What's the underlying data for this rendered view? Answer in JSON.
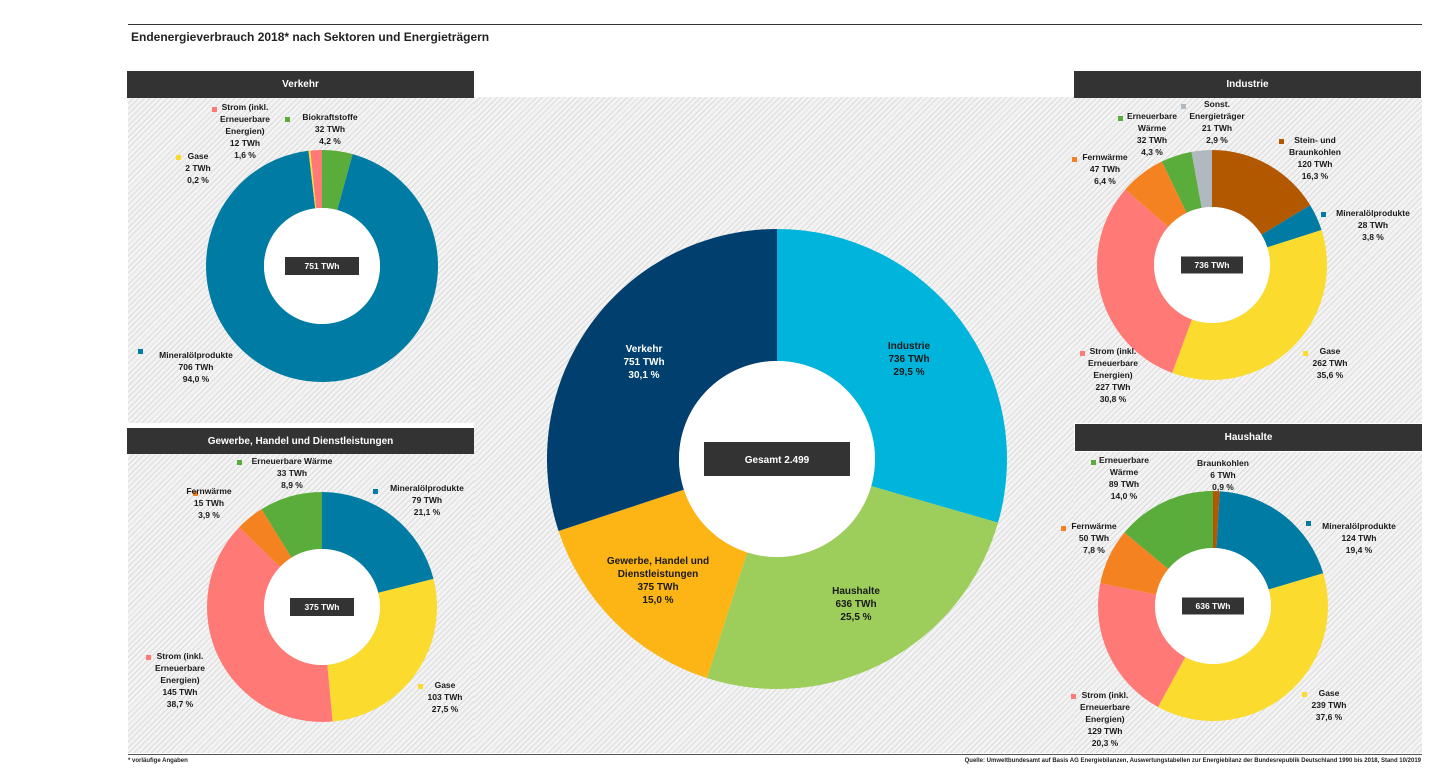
{
  "title": "Endenergieverbrauch 2018* nach Sektoren und Energieträgern",
  "footnote": "* vorläufige Angaben",
  "source": "Quelle: Umweltbundesamt auf Basis AG Energiebilanzen, Auswertungstabellen zur Energiebilanz der Bundesrepublik Deutschland 1990 bis 2018, Stand 10/2019",
  "colors": {
    "mineraloel": "#007ba3",
    "strom": "#ff7a76",
    "gase": "#fadb2e",
    "biokraftstoffe": "#5aad3a",
    "erneuerbare_waerme": "#5aad3a",
    "fernwaerme": "#f58220",
    "sonst": "#b0b9bf",
    "kohle": "#b15800",
    "verkehr": "#003f6e",
    "industrie": "#00b4dc",
    "haushalte": "#9dce5b",
    "ghd": "#fdb515",
    "header": "#333333"
  },
  "chart_data": [
    {
      "id": "gesamt",
      "type": "pie",
      "center_label": "Gesamt 2.499",
      "slices": [
        {
          "name": "Industrie",
          "value": 736,
          "label": "736 TWh",
          "pct": "29,5 %",
          "color_key": "industrie",
          "text_color": "#1a1a1a"
        },
        {
          "name": "Haushalte",
          "value": 636,
          "label": "636 TWh",
          "pct": "25,5 %",
          "color_key": "haushalte",
          "text_color": "#1a1a1a"
        },
        {
          "name": "Gewerbe, Handel und Dienstleistungen",
          "value": 375,
          "label": "375 TWh",
          "pct": "15,0 %",
          "color_key": "ghd",
          "text_color": "#1a1a1a"
        },
        {
          "name": "Verkehr",
          "value": 751,
          "label": "751 TWh",
          "pct": "30,1 %",
          "color_key": "verkehr",
          "text_color": "#ffffff"
        }
      ]
    },
    {
      "id": "verkehr",
      "type": "pie",
      "title": "Verkehr",
      "center_label": "751 TWh",
      "slices": [
        {
          "name": "Biokraftstoffe",
          "value": 32,
          "label": "32 TWh",
          "pct": "4,2 %",
          "color_key": "biokraftstoffe"
        },
        {
          "name": "Mineralölprodukte",
          "value": 706,
          "label": "706 TWh",
          "pct": "94,0 %",
          "color_key": "mineraloel"
        },
        {
          "name": "Gase",
          "value": 2,
          "label": "2 TWh",
          "pct": "0,2 %",
          "color_key": "gase"
        },
        {
          "name": "Strom (inkl. Erneuerbare Energien)",
          "value": 12,
          "label": "12 TWh",
          "pct": "1,6 %",
          "color_key": "strom"
        }
      ]
    },
    {
      "id": "industrie",
      "type": "pie",
      "title": "Industrie",
      "center_label": "736 TWh",
      "slices": [
        {
          "name": "Stein- und Braunkohlen",
          "value": 120,
          "label": "120 TWh",
          "pct": "16,3 %",
          "color_key": "kohle"
        },
        {
          "name": "Mineralölprodukte",
          "value": 28,
          "label": "28 TWh",
          "pct": "3,8 %",
          "color_key": "mineraloel"
        },
        {
          "name": "Gase",
          "value": 262,
          "label": "262 TWh",
          "pct": "35,6 %",
          "color_key": "gase"
        },
        {
          "name": "Strom (inkl. Erneuerbare Energien)",
          "value": 227,
          "label": "227 TWh",
          "pct": "30,8 %",
          "color_key": "strom"
        },
        {
          "name": "Fernwärme",
          "value": 47,
          "label": "47 TWh",
          "pct": "6,4 %",
          "color_key": "fernwaerme"
        },
        {
          "name": "Erneuerbare Wärme",
          "value": 32,
          "label": "32 TWh",
          "pct": "4,3 %",
          "color_key": "erneuerbare_waerme"
        },
        {
          "name": "Sonst. Energieträger",
          "value": 21,
          "label": "21 TWh",
          "pct": "2,9 %",
          "color_key": "sonst"
        }
      ]
    },
    {
      "id": "ghd",
      "type": "pie",
      "title": "Gewerbe, Handel und Dienstleistungen",
      "center_label": "375 TWh",
      "slices": [
        {
          "name": "Mineralölprodukte",
          "value": 79,
          "label": "79 TWh",
          "pct": "21,1 %",
          "color_key": "mineraloel"
        },
        {
          "name": "Gase",
          "value": 103,
          "label": "103 TWh",
          "pct": "27,5 %",
          "color_key": "gase"
        },
        {
          "name": "Strom (inkl. Erneuerbare Energien)",
          "value": 145,
          "label": "145 TWh",
          "pct": "38,7 %",
          "color_key": "strom"
        },
        {
          "name": "Fernwärme",
          "value": 15,
          "label": "15 TWh",
          "pct": "3,9 %",
          "color_key": "fernwaerme"
        },
        {
          "name": "Erneuerbare Wärme",
          "value": 33,
          "label": "33 TWh",
          "pct": "8,9 %",
          "color_key": "erneuerbare_waerme"
        }
      ]
    },
    {
      "id": "haushalte",
      "type": "pie",
      "title": "Haushalte",
      "center_label": "636 TWh",
      "slices": [
        {
          "name": "Braunkohlen",
          "value": 6,
          "label": "6 TWh",
          "pct": "0,9 %",
          "color_key": "kohle"
        },
        {
          "name": "Mineralölprodukte",
          "value": 124,
          "label": "124 TWh",
          "pct": "19,4 %",
          "color_key": "mineraloel"
        },
        {
          "name": "Gase",
          "value": 239,
          "label": "239 TWh",
          "pct": "37,6 %",
          "color_key": "gase"
        },
        {
          "name": "Strom (inkl. Erneuerbare Energien)",
          "value": 129,
          "label": "129 TWh",
          "pct": "20,3 %",
          "color_key": "strom"
        },
        {
          "name": "Fernwärme",
          "value": 50,
          "label": "50 TWh",
          "pct": "7,8 %",
          "color_key": "fernwaerme"
        },
        {
          "name": "Erneuerbare Wärme",
          "value": 89,
          "label": "89 TWh",
          "pct": "14,0 %",
          "color_key": "erneuerbare_waerme"
        }
      ]
    }
  ]
}
